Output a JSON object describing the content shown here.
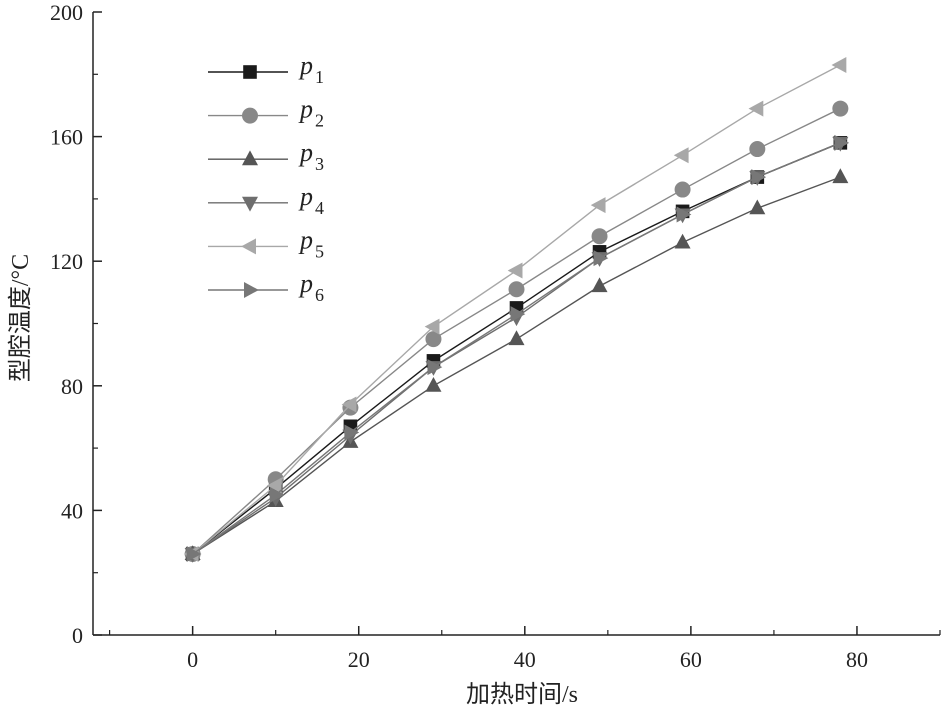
{
  "chart_data": {
    "type": "line",
    "xlabel": "加热时间/s",
    "ylabel": "型腔温度/°C",
    "xlim": [
      -12,
      90
    ],
    "ylim": [
      0,
      200
    ],
    "xticks": [
      0,
      20,
      40,
      60,
      80
    ],
    "yticks": [
      0,
      40,
      80,
      120,
      160,
      200
    ],
    "x": [
      0,
      10,
      19,
      29,
      39,
      49,
      59,
      68,
      78
    ],
    "legend_position": "top-left",
    "series": [
      {
        "name": "p",
        "subscript": "1",
        "marker": "square",
        "color": "#1a1a1a",
        "values": [
          26,
          47,
          67,
          88,
          105,
          123,
          136,
          147,
          158
        ]
      },
      {
        "name": "p",
        "subscript": "2",
        "marker": "circle",
        "color": "#888888",
        "values": [
          26,
          50,
          73,
          95,
          111,
          128,
          143,
          156,
          169
        ]
      },
      {
        "name": "p",
        "subscript": "3",
        "marker": "triangle-up",
        "color": "#555555",
        "values": [
          26,
          43,
          62,
          80,
          95,
          112,
          126,
          137,
          147
        ]
      },
      {
        "name": "p",
        "subscript": "4",
        "marker": "triangle-down",
        "color": "#6e6e6e",
        "values": [
          26,
          44,
          64,
          86,
          102,
          121,
          135,
          147,
          158
        ]
      },
      {
        "name": "p",
        "subscript": "5",
        "marker": "triangle-left",
        "color": "#a8a8a8",
        "values": [
          26,
          48,
          74,
          99,
          117,
          138,
          154,
          169,
          183
        ]
      },
      {
        "name": "p",
        "subscript": "6",
        "marker": "triangle-right",
        "color": "#777777",
        "values": [
          26,
          45,
          65,
          86,
          103,
          121,
          135,
          147,
          158
        ]
      }
    ]
  }
}
